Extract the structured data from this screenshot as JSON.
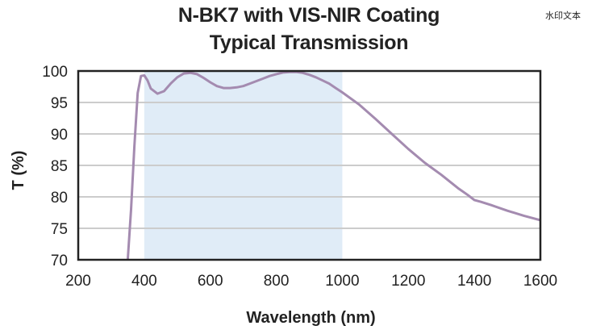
{
  "chart_data": {
    "type": "line",
    "title": [
      "N-BK7 with VIS-NIR Coating",
      "Typical Transmission"
    ],
    "xlabel": "Wavelength (nm)",
    "ylabel": "T (%)",
    "xlim": [
      200,
      1600
    ],
    "ylim": [
      70,
      100
    ],
    "xticks": [
      200,
      400,
      600,
      800,
      1000,
      1200,
      1400,
      1600
    ],
    "yticks": [
      70,
      75,
      80,
      85,
      90,
      95,
      100
    ],
    "grid": "horizontal",
    "highlight_band": {
      "x": [
        400,
        1000
      ],
      "color": "#e0ecf7"
    },
    "series": [
      {
        "color": "#a48bb0",
        "x": [
          350,
          360,
          370,
          380,
          390,
          400,
          410,
          420,
          440,
          460,
          480,
          500,
          520,
          540,
          560,
          580,
          600,
          620,
          640,
          660,
          680,
          700,
          720,
          740,
          760,
          780,
          800,
          820,
          840,
          860,
          880,
          900,
          920,
          940,
          960,
          980,
          1000,
          1050,
          1100,
          1150,
          1200,
          1250,
          1300,
          1350,
          1380,
          1400,
          1420,
          1450,
          1500,
          1550,
          1600
        ],
        "y": [
          70,
          78,
          88,
          96.5,
          99.2,
          99.3,
          98.5,
          97.2,
          96.4,
          96.8,
          98.0,
          99.0,
          99.6,
          99.7,
          99.5,
          98.9,
          98.2,
          97.6,
          97.3,
          97.3,
          97.4,
          97.6,
          98.0,
          98.4,
          98.8,
          99.2,
          99.5,
          99.75,
          99.85,
          99.85,
          99.7,
          99.4,
          99.0,
          98.5,
          98.0,
          97.3,
          96.6,
          94.7,
          92.4,
          90.0,
          87.6,
          85.4,
          83.5,
          81.4,
          80.3,
          79.5,
          79.2,
          78.7,
          77.8,
          77.0,
          76.3
        ]
      }
    ]
  },
  "watermark": "水印文本"
}
